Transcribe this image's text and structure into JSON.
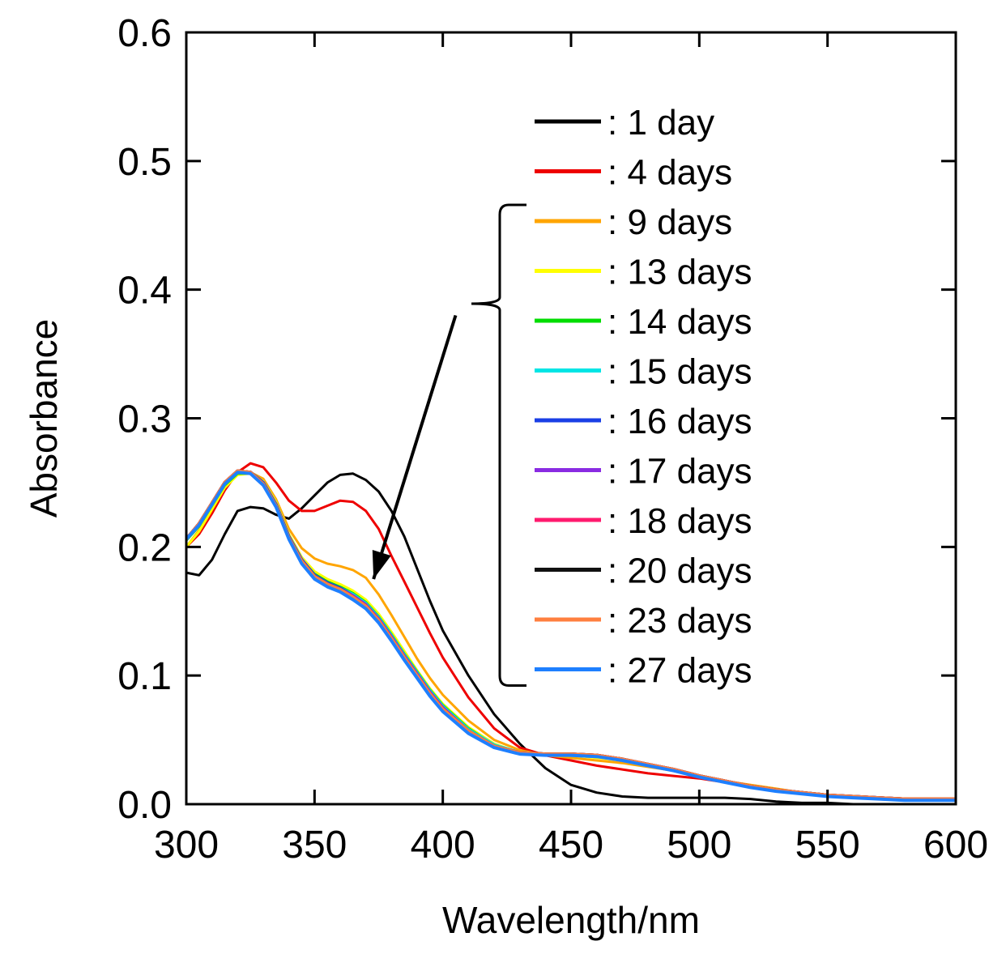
{
  "chart_data": {
    "type": "line",
    "xlabel": "Wavelength/nm",
    "ylabel": "Absorbance",
    "xlim": [
      300,
      600
    ],
    "ylim": [
      0.0,
      0.6
    ],
    "x_ticks": [
      "300",
      "350",
      "400",
      "450",
      "500",
      "550",
      "600"
    ],
    "y_ticks": [
      "0.0",
      "0.1",
      "0.2",
      "0.3",
      "0.4",
      "0.5",
      "0.6"
    ],
    "grid": false,
    "legend_position": "top-right",
    "x": [
      300,
      305,
      310,
      315,
      320,
      325,
      330,
      335,
      340,
      345,
      350,
      355,
      360,
      365,
      370,
      375,
      380,
      385,
      390,
      395,
      400,
      410,
      420,
      430,
      440,
      450,
      460,
      470,
      480,
      490,
      500,
      510,
      520,
      530,
      540,
      550,
      560,
      570,
      580,
      590,
      600
    ],
    "series": [
      {
        "name": ": 1 day",
        "color": "#000000",
        "values": [
          0.18,
          0.178,
          0.19,
          0.21,
          0.228,
          0.231,
          0.23,
          0.225,
          0.222,
          0.23,
          0.24,
          0.25,
          0.256,
          0.257,
          0.252,
          0.243,
          0.228,
          0.208,
          0.183,
          0.158,
          0.135,
          0.1,
          0.07,
          0.047,
          0.028,
          0.015,
          0.009,
          0.006,
          0.005,
          0.005,
          0.005,
          0.005,
          0.004,
          0.002,
          0.001,
          0.001,
          0.0,
          0.0,
          0.0,
          0.0,
          0.0
        ]
      },
      {
        "name": ": 4 days",
        "color": "#ee0000",
        "values": [
          0.2,
          0.21,
          0.226,
          0.244,
          0.258,
          0.265,
          0.262,
          0.25,
          0.236,
          0.228,
          0.228,
          0.232,
          0.236,
          0.235,
          0.228,
          0.214,
          0.193,
          0.173,
          0.153,
          0.133,
          0.114,
          0.083,
          0.059,
          0.044,
          0.038,
          0.034,
          0.03,
          0.027,
          0.024,
          0.022,
          0.02,
          0.017,
          0.014,
          0.011,
          0.009,
          0.007,
          0.005,
          0.004,
          0.003,
          0.003,
          0.003
        ]
      },
      {
        "name": ": 9 days",
        "color": "#ffa500",
        "values": [
          0.2,
          0.213,
          0.23,
          0.247,
          0.257,
          0.258,
          0.253,
          0.237,
          0.214,
          0.199,
          0.191,
          0.187,
          0.185,
          0.182,
          0.176,
          0.163,
          0.147,
          0.13,
          0.113,
          0.098,
          0.085,
          0.065,
          0.05,
          0.042,
          0.038,
          0.036,
          0.034,
          0.032,
          0.029,
          0.026,
          0.022,
          0.018,
          0.015,
          0.012,
          0.009,
          0.007,
          0.006,
          0.005,
          0.004,
          0.004,
          0.004
        ]
      },
      {
        "name": ": 13 days",
        "color": "#ffff00",
        "values": [
          0.2,
          0.212,
          0.229,
          0.246,
          0.256,
          0.257,
          0.251,
          0.235,
          0.21,
          0.192,
          0.181,
          0.175,
          0.171,
          0.166,
          0.159,
          0.148,
          0.134,
          0.119,
          0.104,
          0.09,
          0.078,
          0.06,
          0.047,
          0.04,
          0.039,
          0.038,
          0.036,
          0.034,
          0.03,
          0.026,
          0.022,
          0.018,
          0.014,
          0.011,
          0.009,
          0.007,
          0.006,
          0.005,
          0.004,
          0.004,
          0.004
        ]
      },
      {
        "name": ": 14 days",
        "color": "#00dd00",
        "values": [
          0.205,
          0.216,
          0.232,
          0.248,
          0.257,
          0.257,
          0.25,
          0.233,
          0.208,
          0.19,
          0.179,
          0.173,
          0.169,
          0.164,
          0.157,
          0.146,
          0.132,
          0.117,
          0.103,
          0.089,
          0.077,
          0.059,
          0.046,
          0.04,
          0.039,
          0.038,
          0.037,
          0.035,
          0.031,
          0.027,
          0.022,
          0.018,
          0.014,
          0.011,
          0.009,
          0.007,
          0.006,
          0.005,
          0.004,
          0.004,
          0.004
        ]
      },
      {
        "name": ": 15 days",
        "color": "#00e5e5",
        "values": [
          0.206,
          0.217,
          0.233,
          0.249,
          0.258,
          0.258,
          0.25,
          0.233,
          0.208,
          0.19,
          0.178,
          0.172,
          0.168,
          0.163,
          0.156,
          0.145,
          0.131,
          0.116,
          0.102,
          0.088,
          0.076,
          0.058,
          0.046,
          0.04,
          0.039,
          0.038,
          0.037,
          0.035,
          0.031,
          0.027,
          0.022,
          0.018,
          0.014,
          0.011,
          0.009,
          0.007,
          0.006,
          0.005,
          0.004,
          0.004,
          0.004
        ]
      },
      {
        "name": ": 16 days",
        "color": "#1a3fe6",
        "values": [
          0.206,
          0.218,
          0.234,
          0.25,
          0.259,
          0.258,
          0.25,
          0.233,
          0.208,
          0.19,
          0.178,
          0.172,
          0.168,
          0.162,
          0.155,
          0.144,
          0.13,
          0.115,
          0.101,
          0.087,
          0.075,
          0.057,
          0.045,
          0.04,
          0.039,
          0.039,
          0.038,
          0.035,
          0.031,
          0.027,
          0.022,
          0.018,
          0.014,
          0.011,
          0.009,
          0.007,
          0.006,
          0.005,
          0.004,
          0.004,
          0.004
        ]
      },
      {
        "name": ": 17 days",
        "color": "#8a2be2",
        "values": [
          0.206,
          0.218,
          0.234,
          0.25,
          0.259,
          0.258,
          0.249,
          0.232,
          0.207,
          0.189,
          0.177,
          0.171,
          0.167,
          0.162,
          0.155,
          0.144,
          0.13,
          0.115,
          0.101,
          0.087,
          0.075,
          0.057,
          0.045,
          0.04,
          0.039,
          0.039,
          0.038,
          0.035,
          0.031,
          0.027,
          0.022,
          0.018,
          0.014,
          0.011,
          0.009,
          0.007,
          0.006,
          0.005,
          0.004,
          0.004,
          0.004
        ]
      },
      {
        "name": ": 18 days",
        "color": "#ff1a6e",
        "values": [
          0.206,
          0.218,
          0.234,
          0.25,
          0.259,
          0.258,
          0.249,
          0.232,
          0.207,
          0.189,
          0.177,
          0.171,
          0.167,
          0.161,
          0.154,
          0.143,
          0.129,
          0.114,
          0.1,
          0.086,
          0.074,
          0.057,
          0.045,
          0.04,
          0.039,
          0.039,
          0.038,
          0.035,
          0.031,
          0.027,
          0.022,
          0.018,
          0.014,
          0.011,
          0.009,
          0.007,
          0.006,
          0.005,
          0.004,
          0.004,
          0.004
        ]
      },
      {
        "name": ": 20 days",
        "color": "#111111",
        "values": [
          0.206,
          0.218,
          0.234,
          0.25,
          0.259,
          0.258,
          0.249,
          0.232,
          0.207,
          0.189,
          0.177,
          0.171,
          0.167,
          0.161,
          0.154,
          0.143,
          0.129,
          0.114,
          0.1,
          0.086,
          0.074,
          0.057,
          0.045,
          0.04,
          0.039,
          0.039,
          0.038,
          0.035,
          0.031,
          0.027,
          0.022,
          0.018,
          0.014,
          0.011,
          0.009,
          0.007,
          0.006,
          0.005,
          0.004,
          0.004,
          0.004
        ]
      },
      {
        "name": ": 23 days",
        "color": "#ff7f3f",
        "values": [
          0.206,
          0.218,
          0.234,
          0.25,
          0.259,
          0.258,
          0.249,
          0.232,
          0.207,
          0.189,
          0.177,
          0.171,
          0.167,
          0.161,
          0.154,
          0.143,
          0.129,
          0.114,
          0.1,
          0.086,
          0.074,
          0.057,
          0.045,
          0.04,
          0.039,
          0.039,
          0.038,
          0.035,
          0.031,
          0.027,
          0.022,
          0.018,
          0.014,
          0.011,
          0.009,
          0.007,
          0.006,
          0.005,
          0.004,
          0.004,
          0.004
        ]
      },
      {
        "name": ": 27 days",
        "color": "#1e7fff",
        "values": [
          0.206,
          0.217,
          0.233,
          0.249,
          0.258,
          0.257,
          0.248,
          0.231,
          0.206,
          0.187,
          0.175,
          0.169,
          0.165,
          0.159,
          0.152,
          0.141,
          0.127,
          0.112,
          0.098,
          0.084,
          0.072,
          0.055,
          0.044,
          0.039,
          0.038,
          0.038,
          0.037,
          0.034,
          0.03,
          0.026,
          0.021,
          0.017,
          0.013,
          0.01,
          0.008,
          0.006,
          0.005,
          0.004,
          0.003,
          0.003,
          0.003
        ]
      }
    ],
    "annotations": [
      {
        "type": "arrow",
        "description": "arrow indicating decreasing absorbance",
        "from": [
          405,
          0.38
        ],
        "to": [
          373,
          0.175
        ]
      }
    ]
  }
}
